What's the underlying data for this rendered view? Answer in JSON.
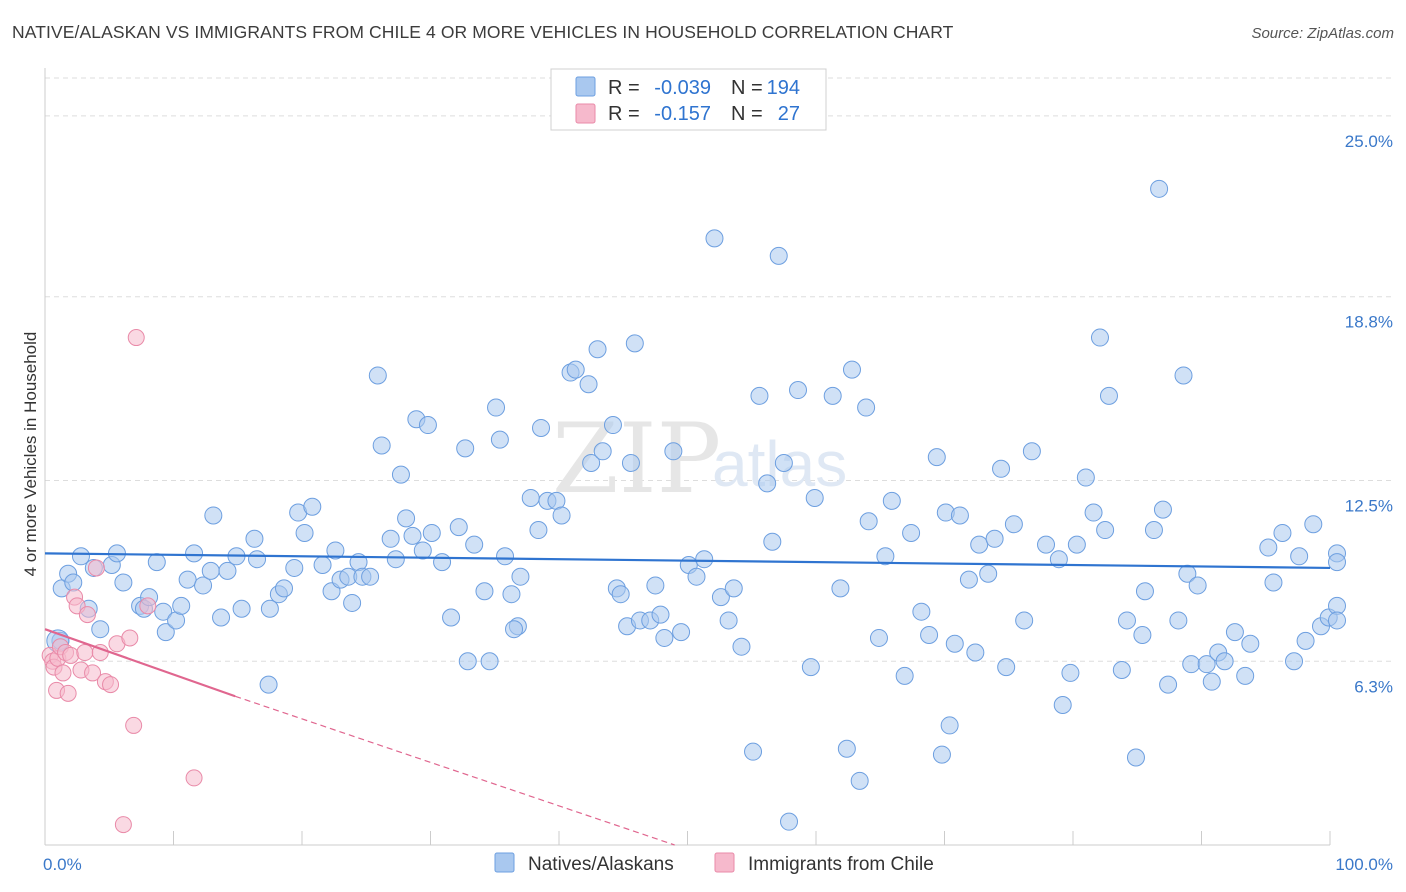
{
  "title": "NATIVE/ALASKAN VS IMMIGRANTS FROM CHILE 4 OR MORE VEHICLES IN HOUSEHOLD CORRELATION CHART",
  "source": "Source: ZipAtlas.com",
  "watermark": {
    "zip": "ZIP",
    "atlas": "atlas"
  },
  "colors": {
    "blue_fill": "#a9c8ef",
    "blue_stroke": "#6d9fe0",
    "blue_line": "#2f74d0",
    "pink_fill": "#f6b9cc",
    "pink_stroke": "#e98aa8",
    "pink_line": "#e0668f",
    "tick_text": "#3a78c9",
    "grid": "#dddddd"
  },
  "legend": {
    "rows": [
      {
        "r_label": "R =",
        "r_value": "-0.039",
        "n_label": "N =",
        "n_value": "194"
      },
      {
        "r_label": "R =",
        "r_value": "-0.157",
        "n_label": "N =",
        "n_value": "27"
      }
    ]
  },
  "bottom_legend": [
    "Natives/Alaskans",
    "Immigrants from Chile"
  ],
  "chart_data": {
    "type": "scatter",
    "title": "NATIVE/ALASKAN VS IMMIGRANTS FROM CHILE 4 OR MORE VEHICLES IN HOUSEHOLD CORRELATION CHART",
    "xlabel": "",
    "ylabel": "4 or more Vehicles in Household",
    "xlim": [
      0,
      100
    ],
    "ylim": [
      0,
      26.3
    ],
    "x_tick_labels": [
      "0.0%",
      "100.0%"
    ],
    "y_ticks": [
      6.3,
      12.5,
      18.8,
      25.0
    ],
    "y_tick_labels": [
      "6.3%",
      "12.5%",
      "18.8%",
      "25.0%"
    ],
    "grid": "horizontal dashed",
    "legend_position": "top-center",
    "series": [
      {
        "name": "Natives/Alaskans",
        "stats": {
          "R": -0.039,
          "N": 194
        },
        "trend": {
          "x": [
            0,
            100
          ],
          "y": [
            10.0,
            9.5
          ]
        },
        "points": [
          [
            1.2,
            7.0
          ],
          [
            1.3,
            8.8
          ],
          [
            1.8,
            9.3
          ],
          [
            2.2,
            9.0
          ],
          [
            2.8,
            9.9
          ],
          [
            3.4,
            8.1
          ],
          [
            3.8,
            9.5
          ],
          [
            4.3,
            7.4
          ],
          [
            5.2,
            9.6
          ],
          [
            5.6,
            10.0
          ],
          [
            6.1,
            9.0
          ],
          [
            7.4,
            8.2
          ],
          [
            7.7,
            8.1
          ],
          [
            8.1,
            8.5
          ],
          [
            8.7,
            9.7
          ],
          [
            9.2,
            8.0
          ],
          [
            9.4,
            7.3
          ],
          [
            10.2,
            7.7
          ],
          [
            10.6,
            8.2
          ],
          [
            11.1,
            9.1
          ],
          [
            11.6,
            10.0
          ],
          [
            12.3,
            8.9
          ],
          [
            12.9,
            9.4
          ],
          [
            13.1,
            11.3
          ],
          [
            13.7,
            7.8
          ],
          [
            14.2,
            9.4
          ],
          [
            14.9,
            9.9
          ],
          [
            15.3,
            8.1
          ],
          [
            16.3,
            10.5
          ],
          [
            16.5,
            9.8
          ],
          [
            17.4,
            5.5
          ],
          [
            17.5,
            8.1
          ],
          [
            18.2,
            8.6
          ],
          [
            18.6,
            8.8
          ],
          [
            19.4,
            9.5
          ],
          [
            19.7,
            11.4
          ],
          [
            20.2,
            10.7
          ],
          [
            20.8,
            11.6
          ],
          [
            21.6,
            9.6
          ],
          [
            22.3,
            8.7
          ],
          [
            22.6,
            10.1
          ],
          [
            23.0,
            9.1
          ],
          [
            23.6,
            9.2
          ],
          [
            23.9,
            8.3
          ],
          [
            24.4,
            9.7
          ],
          [
            24.7,
            9.2
          ],
          [
            25.3,
            9.2
          ],
          [
            25.9,
            16.1
          ],
          [
            26.2,
            13.7
          ],
          [
            26.9,
            10.5
          ],
          [
            27.3,
            9.8
          ],
          [
            27.7,
            12.7
          ],
          [
            28.1,
            11.2
          ],
          [
            28.6,
            10.6
          ],
          [
            28.9,
            14.6
          ],
          [
            29.4,
            10.1
          ],
          [
            29.8,
            14.4
          ],
          [
            30.1,
            10.7
          ],
          [
            30.9,
            9.7
          ],
          [
            31.6,
            7.8
          ],
          [
            32.2,
            10.9
          ],
          [
            32.7,
            13.6
          ],
          [
            32.9,
            6.3
          ],
          [
            33.4,
            10.3
          ],
          [
            34.2,
            8.7
          ],
          [
            34.6,
            6.3
          ],
          [
            35.1,
            15.0
          ],
          [
            35.4,
            13.9
          ],
          [
            35.8,
            9.9
          ],
          [
            36.3,
            8.6
          ],
          [
            36.8,
            7.5
          ],
          [
            37.0,
            9.2
          ],
          [
            37.8,
            11.9
          ],
          [
            38.4,
            10.8
          ],
          [
            38.6,
            14.3
          ],
          [
            39.1,
            11.8
          ],
          [
            39.8,
            11.8
          ],
          [
            40.2,
            11.3
          ],
          [
            40.9,
            16.2
          ],
          [
            41.3,
            16.3
          ],
          [
            42.3,
            15.8
          ],
          [
            42.5,
            13.1
          ],
          [
            43.0,
            17.0
          ],
          [
            43.4,
            13.5
          ],
          [
            44.2,
            14.4
          ],
          [
            44.5,
            8.8
          ],
          [
            44.8,
            8.6
          ],
          [
            45.3,
            7.5
          ],
          [
            45.6,
            13.1
          ],
          [
            45.9,
            17.2
          ],
          [
            46.3,
            7.7
          ],
          [
            47.1,
            7.7
          ],
          [
            47.5,
            8.9
          ],
          [
            47.9,
            7.9
          ],
          [
            48.2,
            7.1
          ],
          [
            48.9,
            13.5
          ],
          [
            49.5,
            7.3
          ],
          [
            50.1,
            9.6
          ],
          [
            50.7,
            9.2
          ],
          [
            51.3,
            9.8
          ],
          [
            52.1,
            20.8
          ],
          [
            52.6,
            8.5
          ],
          [
            53.2,
            7.7
          ],
          [
            53.6,
            8.8
          ],
          [
            54.2,
            6.8
          ],
          [
            55.1,
            3.2
          ],
          [
            55.6,
            15.4
          ],
          [
            56.2,
            12.4
          ],
          [
            56.6,
            10.4
          ],
          [
            57.1,
            20.2
          ],
          [
            57.5,
            13.1
          ],
          [
            57.9,
            0.8
          ],
          [
            58.6,
            15.6
          ],
          [
            59.6,
            6.1
          ],
          [
            59.9,
            11.9
          ],
          [
            61.3,
            15.4
          ],
          [
            61.9,
            8.8
          ],
          [
            62.4,
            3.3
          ],
          [
            62.8,
            16.3
          ],
          [
            63.4,
            2.2
          ],
          [
            63.9,
            15.0
          ],
          [
            64.1,
            11.1
          ],
          [
            64.9,
            7.1
          ],
          [
            65.4,
            9.9
          ],
          [
            65.9,
            11.8
          ],
          [
            66.9,
            5.8
          ],
          [
            67.4,
            10.7
          ],
          [
            68.2,
            8.0
          ],
          [
            68.8,
            7.2
          ],
          [
            69.4,
            13.3
          ],
          [
            69.8,
            3.1
          ],
          [
            70.1,
            11.4
          ],
          [
            70.4,
            4.1
          ],
          [
            70.8,
            6.9
          ],
          [
            71.2,
            11.3
          ],
          [
            71.9,
            9.1
          ],
          [
            72.4,
            6.6
          ],
          [
            72.7,
            10.3
          ],
          [
            73.4,
            9.3
          ],
          [
            73.9,
            10.5
          ],
          [
            74.4,
            12.9
          ],
          [
            74.8,
            6.1
          ],
          [
            75.4,
            11.0
          ],
          [
            76.2,
            7.7
          ],
          [
            76.8,
            13.5
          ],
          [
            77.9,
            10.3
          ],
          [
            78.9,
            9.8
          ],
          [
            79.2,
            4.8
          ],
          [
            79.8,
            5.9
          ],
          [
            80.3,
            10.3
          ],
          [
            81.0,
            12.6
          ],
          [
            81.6,
            11.4
          ],
          [
            82.1,
            17.4
          ],
          [
            82.5,
            10.8
          ],
          [
            82.8,
            15.4
          ],
          [
            83.8,
            6.0
          ],
          [
            84.2,
            7.7
          ],
          [
            84.9,
            3.0
          ],
          [
            85.4,
            7.2
          ],
          [
            85.6,
            8.7
          ],
          [
            86.3,
            10.8
          ],
          [
            86.7,
            22.5
          ],
          [
            87.0,
            11.5
          ],
          [
            87.4,
            5.5
          ],
          [
            88.2,
            7.7
          ],
          [
            88.6,
            16.1
          ],
          [
            88.9,
            9.3
          ],
          [
            89.2,
            6.2
          ],
          [
            89.7,
            8.9
          ],
          [
            90.4,
            6.2
          ],
          [
            90.8,
            5.6
          ],
          [
            91.3,
            6.6
          ],
          [
            91.8,
            6.3
          ],
          [
            92.6,
            7.3
          ],
          [
            93.4,
            5.8
          ],
          [
            93.8,
            6.9
          ],
          [
            95.2,
            10.2
          ],
          [
            95.6,
            9.0
          ],
          [
            96.3,
            10.7
          ],
          [
            97.2,
            6.3
          ],
          [
            97.6,
            9.9
          ],
          [
            98.1,
            7.0
          ],
          [
            98.7,
            11.0
          ],
          [
            99.3,
            7.5
          ],
          [
            99.9,
            7.8
          ],
          [
            100.6,
            8.2
          ],
          [
            101.2,
            7.7
          ],
          [
            102.8,
            10.0
          ],
          [
            103.3,
            9.7
          ],
          [
            36.5,
            7.4
          ]
        ]
      },
      {
        "name": "Immigrants from Chile",
        "stats": {
          "R": -0.157,
          "N": 27
        },
        "trend": {
          "x": [
            0,
            14.8
          ],
          "y": [
            7.4,
            5.1
          ]
        },
        "trend_extended": {
          "x": [
            14.8,
            49
          ],
          "y": [
            5.1,
            0
          ]
        },
        "points": [
          [
            0.4,
            6.5
          ],
          [
            0.6,
            6.3
          ],
          [
            0.7,
            6.1
          ],
          [
            0.9,
            5.3
          ],
          [
            1.0,
            6.4
          ],
          [
            1.2,
            6.8
          ],
          [
            1.4,
            5.9
          ],
          [
            1.6,
            6.6
          ],
          [
            1.8,
            5.2
          ],
          [
            2.0,
            6.5
          ],
          [
            2.3,
            8.5
          ],
          [
            2.5,
            8.2
          ],
          [
            2.8,
            6.0
          ],
          [
            3.1,
            6.6
          ],
          [
            3.3,
            7.9
          ],
          [
            3.7,
            5.9
          ],
          [
            4.0,
            9.5
          ],
          [
            4.3,
            6.6
          ],
          [
            4.7,
            5.6
          ],
          [
            5.1,
            5.5
          ],
          [
            5.6,
            6.9
          ],
          [
            6.1,
            0.7
          ],
          [
            6.6,
            7.1
          ],
          [
            6.9,
            4.1
          ],
          [
            7.1,
            17.4
          ],
          [
            8.0,
            8.2
          ],
          [
            11.6,
            2.3
          ]
        ]
      }
    ]
  }
}
